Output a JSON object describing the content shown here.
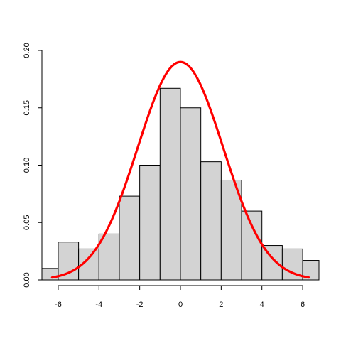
{
  "chart_data": {
    "type": "bar",
    "subtype": "histogram-with-density",
    "title": "",
    "xlabel": "",
    "ylabel": "",
    "xlim": [
      -6.8,
      6.8
    ],
    "ylim": [
      0,
      0.2
    ],
    "x_ticks": [
      -6,
      -4,
      -2,
      0,
      2,
      4,
      6
    ],
    "x_tick_labels": [
      "-6",
      "-4",
      "-2",
      "0",
      "2",
      "4",
      "6"
    ],
    "y_ticks": [
      0,
      0.05,
      0.1,
      0.15,
      0.2
    ],
    "y_tick_labels": [
      "0.00",
      "0.05",
      "0.10",
      "0.15",
      "0.20"
    ],
    "bins": [
      {
        "start": -7,
        "end": -6,
        "density": 0.01
      },
      {
        "start": -6,
        "end": -5,
        "density": 0.033
      },
      {
        "start": -5,
        "end": -4,
        "density": 0.027
      },
      {
        "start": -4,
        "end": -3,
        "density": 0.04
      },
      {
        "start": -3,
        "end": -2,
        "density": 0.073
      },
      {
        "start": -2,
        "end": -1,
        "density": 0.1
      },
      {
        "start": -1,
        "end": 0,
        "density": 0.167
      },
      {
        "start": 0,
        "end": 1,
        "density": 0.15
      },
      {
        "start": 1,
        "end": 2,
        "density": 0.103
      },
      {
        "start": 2,
        "end": 3,
        "density": 0.087
      },
      {
        "start": 3,
        "end": 4,
        "density": 0.06
      },
      {
        "start": 4,
        "end": 5,
        "density": 0.03
      },
      {
        "start": 5,
        "end": 6,
        "density": 0.027
      },
      {
        "start": 6,
        "end": 7,
        "density": 0.017
      }
    ],
    "density_curve": {
      "distribution": "normal",
      "mean": 0,
      "sd": 2.1,
      "x_range": [
        -6.3,
        6.3
      ]
    },
    "colors": {
      "bar_fill": "#d3d3d3",
      "bar_stroke": "#000000",
      "curve": "#ff0000"
    },
    "grid": false,
    "legend": "none"
  }
}
